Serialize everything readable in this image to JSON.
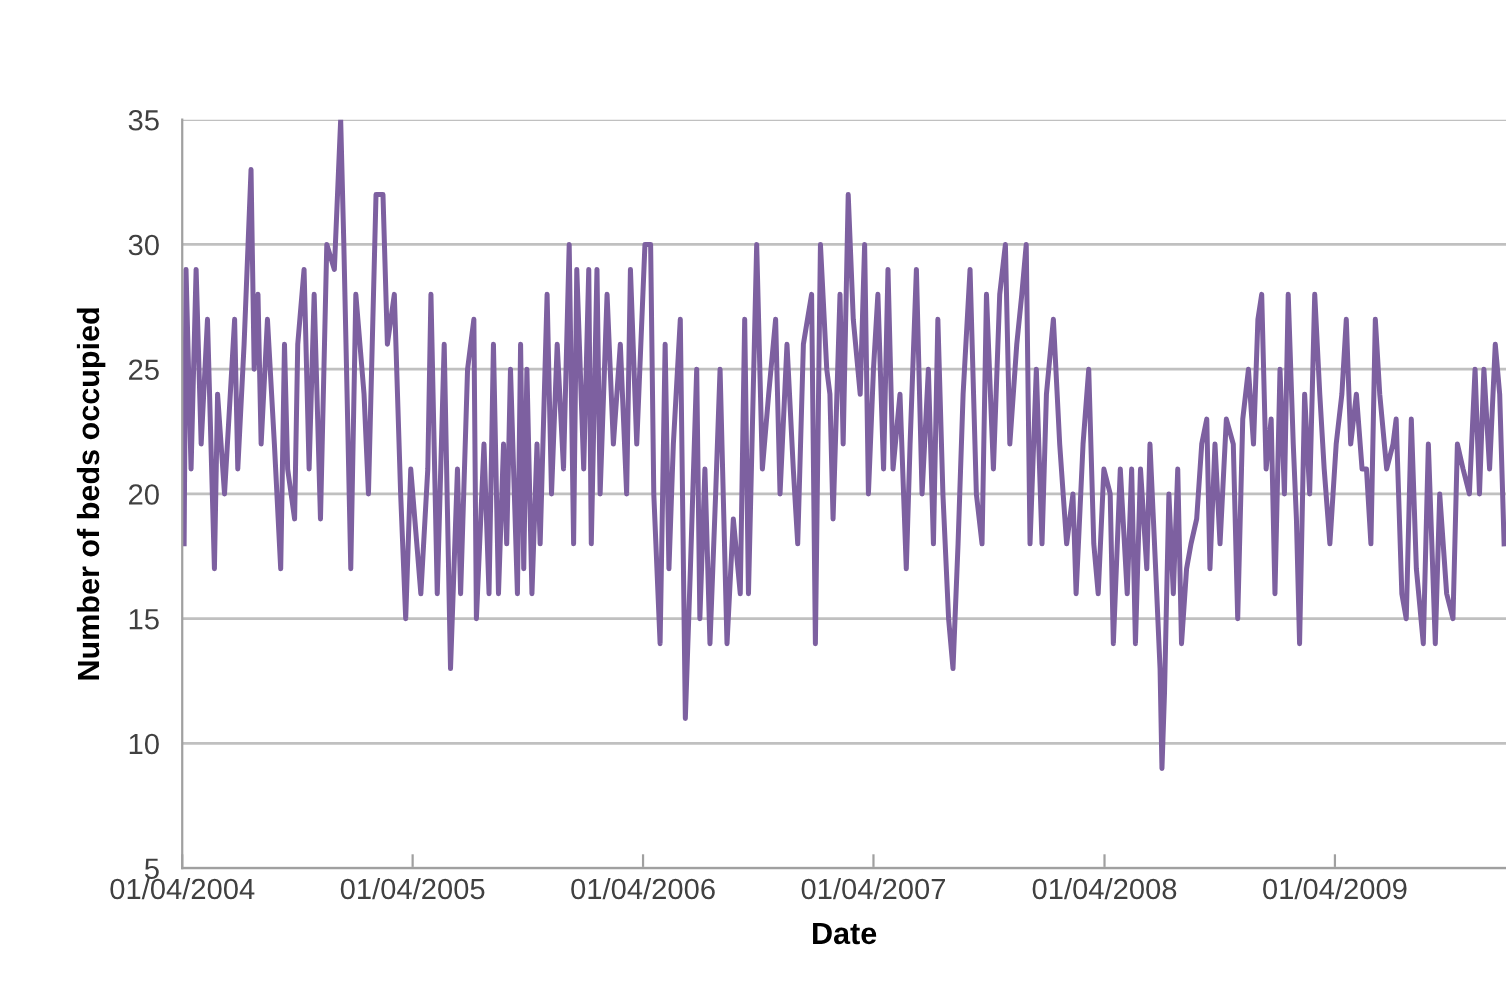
{
  "chart_data": {
    "type": "line",
    "xlabel": "Date",
    "ylabel": "Number of beds occupied",
    "xlim": [
      "2004-04-01",
      "2009-12-28"
    ],
    "ylim": [
      5,
      35
    ],
    "xticks": [
      {
        "value": "2004-04-01",
        "label": "01/04/2004"
      },
      {
        "value": "2005-04-01",
        "label": "01/04/2005"
      },
      {
        "value": "2006-04-01",
        "label": "01/04/2006"
      },
      {
        "value": "2007-04-01",
        "label": "01/04/2007"
      },
      {
        "value": "2008-04-01",
        "label": "01/04/2008"
      },
      {
        "value": "2009-04-01",
        "label": "01/04/2009"
      }
    ],
    "yticks": [
      5,
      10,
      15,
      20,
      25,
      30,
      35
    ],
    "grid": "y",
    "legend": false,
    "marker": "none",
    "line_style": "solid",
    "series": [
      {
        "color": "#7d60a0",
        "x": [
          "2004-04-04",
          "2004-04-07",
          "2004-04-15",
          "2004-04-23",
          "2004-05-01",
          "2004-05-11",
          "2004-05-22",
          "2004-05-27",
          "2004-06-07",
          "2004-06-23",
          "2004-06-28",
          "2004-07-08",
          "2004-07-19",
          "2004-07-24",
          "2004-07-30",
          "2004-08-04",
          "2004-08-14",
          "2004-08-25",
          "2004-09-04",
          "2004-09-10",
          "2004-09-15",
          "2004-09-26",
          "2004-10-01",
          "2004-10-11",
          "2004-10-19",
          "2004-10-27",
          "2004-11-06",
          "2004-11-16",
          "2004-11-28",
          "2004-12-08",
          "2004-12-13",
          "2004-12-19",
          "2004-12-24",
          "2005-01-01",
          "2005-01-14",
          "2005-01-21",
          "2005-02-02",
          "2005-02-13",
          "2005-02-20",
          "2005-03-03",
          "2005-03-13",
          "2005-03-21",
          "2005-03-29",
          "2005-04-14",
          "2005-04-25",
          "2005-04-30",
          "2005-05-10",
          "2005-05-21",
          "2005-05-31",
          "2005-06-11",
          "2005-06-16",
          "2005-06-27",
          "2005-07-07",
          "2005-07-11",
          "2005-07-23",
          "2005-07-31",
          "2005-08-07",
          "2005-08-15",
          "2005-08-23",
          "2005-08-28",
          "2005-09-03",
          "2005-09-14",
          "2005-09-19",
          "2005-09-24",
          "2005-09-29",
          "2005-10-07",
          "2005-10-15",
          "2005-10-20",
          "2005-10-31",
          "2005-11-07",
          "2005-11-16",
          "2005-11-26",
          "2005-12-05",
          "2005-12-12",
          "2005-12-17",
          "2005-12-28",
          "2006-01-05",
          "2006-01-09",
          "2006-01-18",
          "2006-01-23",
          "2006-02-03",
          "2006-02-13",
          "2006-02-24",
          "2006-03-06",
          "2006-03-12",
          "2006-03-22",
          "2006-04-04",
          "2006-04-13",
          "2006-04-18",
          "2006-04-28",
          "2006-05-06",
          "2006-05-12",
          "2006-05-19",
          "2006-05-30",
          "2006-06-07",
          "2006-06-15",
          "2006-06-25",
          "2006-06-30",
          "2006-07-08",
          "2006-07-16",
          "2006-07-25",
          "2006-08-01",
          "2006-08-12",
          "2006-08-22",
          "2006-09-02",
          "2006-09-09",
          "2006-09-15",
          "2006-09-28",
          "2006-10-07",
          "2006-10-17",
          "2006-10-28",
          "2006-11-04",
          "2006-11-15",
          "2006-11-25",
          "2006-12-02",
          "2006-12-11",
          "2006-12-24",
          "2006-12-30",
          "2007-01-07",
          "2007-01-17",
          "2007-01-22",
          "2007-01-27",
          "2007-02-07",
          "2007-02-12",
          "2007-02-20",
          "2007-02-28",
          "2007-03-11",
          "2007-03-18",
          "2007-03-24",
          "2007-04-01",
          "2007-04-08",
          "2007-04-17",
          "2007-04-24",
          "2007-05-02",
          "2007-05-13",
          "2007-05-23",
          "2007-05-29",
          "2007-06-08",
          "2007-06-17",
          "2007-06-27",
          "2007-07-05",
          "2007-07-12",
          "2007-07-20",
          "2007-07-29",
          "2007-08-05",
          "2007-08-13",
          "2007-08-21",
          "2007-09-01",
          "2007-09-11",
          "2007-09-20",
          "2007-09-27",
          "2007-10-08",
          "2007-10-18",
          "2007-10-27",
          "2007-11-03",
          "2007-11-14",
          "2007-11-22",
          "2007-11-29",
          "2007-12-05",
          "2007-12-15",
          "2007-12-24",
          "2007-12-31",
          "2008-01-11",
          "2008-01-21",
          "2008-02-01",
          "2008-02-11",
          "2008-02-16",
          "2008-02-27",
          "2008-03-07",
          "2008-03-15",
          "2008-03-22",
          "2008-03-31",
          "2008-04-10",
          "2008-04-15",
          "2008-04-26",
          "2008-05-07",
          "2008-05-14",
          "2008-05-20",
          "2008-05-28",
          "2008-06-07",
          "2008-06-12",
          "2008-06-21",
          "2008-06-28",
          "2008-07-01",
          "2008-07-05",
          "2008-07-12",
          "2008-07-19",
          "2008-07-26",
          "2008-08-01",
          "2008-08-09",
          "2008-08-16",
          "2008-08-25",
          "2008-09-02",
          "2008-09-10",
          "2008-09-15",
          "2008-09-23",
          "2008-10-01",
          "2008-10-11",
          "2008-10-22",
          "2008-10-29",
          "2008-11-06",
          "2008-11-15",
          "2008-11-23",
          "2008-11-30",
          "2008-12-06",
          "2008-12-13",
          "2008-12-21",
          "2008-12-27",
          "2009-01-04",
          "2009-01-11",
          "2009-01-17",
          "2009-01-25",
          "2009-01-30",
          "2009-02-04",
          "2009-02-12",
          "2009-02-20",
          "2009-02-28",
          "2009-03-08",
          "2009-03-15",
          "2009-03-24",
          "2009-04-03",
          "2009-04-12",
          "2009-04-19",
          "2009-04-26",
          "2009-05-05",
          "2009-05-14",
          "2009-05-21",
          "2009-05-28",
          "2009-06-04",
          "2009-06-11",
          "2009-06-22",
          "2009-07-02",
          "2009-07-07",
          "2009-07-16",
          "2009-07-23",
          "2009-07-31",
          "2009-08-08",
          "2009-08-19",
          "2009-08-27",
          "2009-09-07",
          "2009-09-14",
          "2009-09-25",
          "2009-10-05",
          "2009-10-12",
          "2009-10-21",
          "2009-10-31",
          "2009-11-09",
          "2009-11-16",
          "2009-11-23",
          "2009-12-02",
          "2009-12-11",
          "2009-12-18",
          "2009-12-25"
        ],
        "values": [
          18,
          29,
          21,
          29,
          22,
          27,
          17,
          24,
          20,
          27,
          21,
          26,
          33,
          25,
          28,
          22,
          27,
          22,
          17,
          26,
          21,
          19,
          26,
          29,
          21,
          28,
          19,
          30,
          29,
          35,
          30,
          23,
          17,
          28,
          24,
          20,
          32,
          32,
          26,
          28,
          20,
          15,
          21,
          16,
          21,
          28,
          16,
          26,
          13,
          21,
          16,
          25,
          27,
          15,
          22,
          16,
          26,
          16,
          22,
          18,
          25,
          16,
          26,
          17,
          25,
          16,
          22,
          18,
          28,
          20,
          26,
          21,
          30,
          18,
          29,
          21,
          29,
          18,
          29,
          20,
          28,
          22,
          26,
          20,
          29,
          22,
          30,
          30,
          20,
          14,
          26,
          17,
          22,
          27,
          11,
          17,
          25,
          15,
          21,
          14,
          20,
          25,
          14,
          19,
          16,
          27,
          16,
          30,
          21,
          24,
          27,
          20,
          26,
          21,
          18,
          26,
          28,
          14,
          30,
          25,
          24,
          19,
          28,
          22,
          32,
          27,
          24,
          30,
          20,
          25,
          28,
          21,
          29,
          21,
          24,
          17,
          22,
          29,
          20,
          25,
          18,
          27,
          20,
          15,
          13,
          18,
          24,
          29,
          20,
          18,
          28,
          21,
          28,
          30,
          22,
          26,
          28,
          30,
          18,
          25,
          18,
          24,
          27,
          22,
          18,
          20,
          16,
          22,
          25,
          18,
          16,
          21,
          20,
          14,
          21,
          16,
          21,
          14,
          21,
          17,
          22,
          17,
          13,
          9,
          12,
          20,
          16,
          21,
          14,
          17,
          18,
          19,
          22,
          23,
          17,
          22,
          18,
          23,
          22,
          15,
          23,
          25,
          22,
          27,
          28,
          21,
          23,
          16,
          25,
          20,
          28,
          22,
          19,
          14,
          24,
          20,
          28,
          24,
          21,
          18,
          22,
          24,
          27,
          22,
          24,
          21,
          21,
          18,
          27,
          24,
          21,
          22,
          23,
          16,
          15,
          23,
          17,
          14,
          22,
          14,
          20,
          16,
          15,
          22,
          21,
          20,
          25,
          20,
          25,
          21,
          26,
          24,
          18
        ]
      }
    ]
  }
}
